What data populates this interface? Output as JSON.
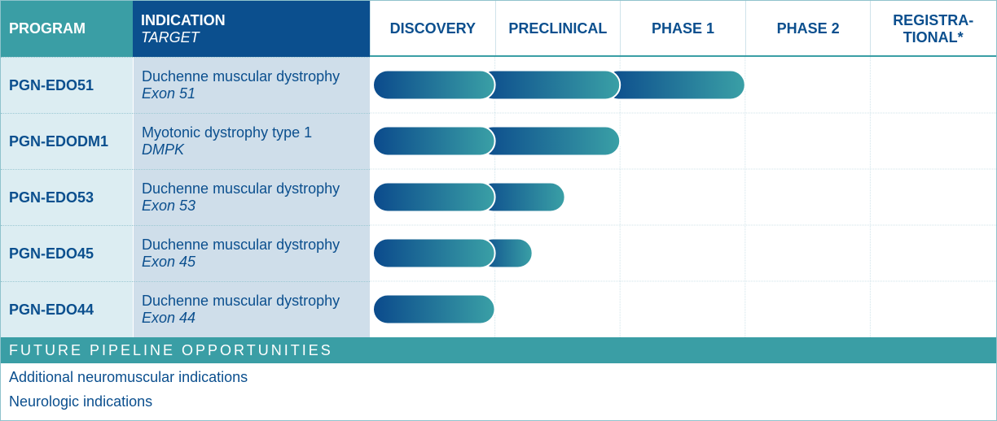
{
  "header": {
    "program": "PROGRAM",
    "indication": "INDICATION",
    "target": "TARGET",
    "phases": [
      "DISCOVERY",
      "PRECLINICAL",
      "PHASE 1",
      "PHASE 2",
      "REGISTRA-TIONAL*"
    ]
  },
  "rows": [
    {
      "program": "PGN-EDO51",
      "indication": "Duchenne muscular dystrophy",
      "target": "Exon 51",
      "progress": 3.0
    },
    {
      "program": "PGN-EDODM1",
      "indication": "Myotonic dystrophy type 1",
      "target": "DMPK",
      "progress": 2.0
    },
    {
      "program": "PGN-EDO53",
      "indication": "Duchenne muscular dystrophy",
      "target": "Exon 53",
      "progress": 1.56
    },
    {
      "program": "PGN-EDO45",
      "indication": "Duchenne muscular dystrophy",
      "target": "Exon 45",
      "progress": 1.3
    },
    {
      "program": "PGN-EDO44",
      "indication": "Duchenne muscular dystrophy",
      "target": "Exon 44",
      "progress": 1.0
    }
  ],
  "future": {
    "title": "FUTURE PIPELINE OPPORTUNITIES",
    "items": [
      "Additional neuromuscular indications",
      "Neurologic indications"
    ]
  }
}
